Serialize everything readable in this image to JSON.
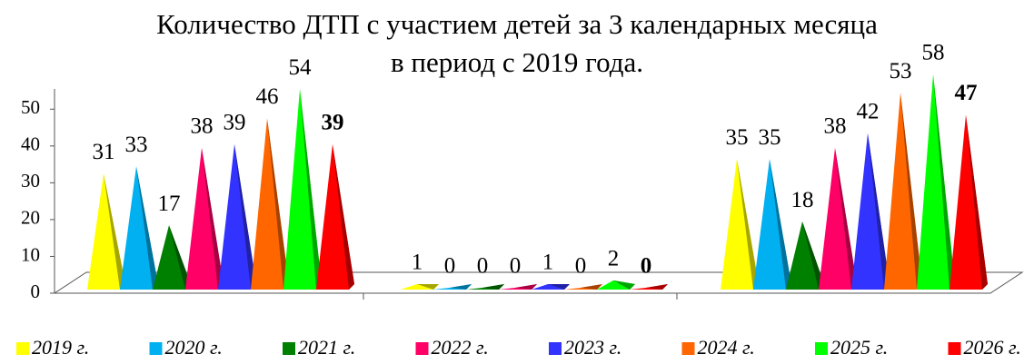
{
  "chart_data": {
    "type": "pyramid",
    "title": [
      "Количество ДТП с участием детей за 3 календарных месяца",
      "в период с 2019 года."
    ],
    "categories": [
      null,
      null,
      null
    ],
    "series": [
      {
        "name": "2019 г.",
        "color": "#ffff00",
        "values": [
          31,
          1,
          35
        ]
      },
      {
        "name": "2020 г.",
        "color": "#00b0f0",
        "values": [
          33,
          0,
          35
        ]
      },
      {
        "name": "2021 г.",
        "color": "#008000",
        "values": [
          17,
          0,
          18
        ]
      },
      {
        "name": "2022 г.",
        "color": "#ff0066",
        "values": [
          38,
          0,
          38
        ]
      },
      {
        "name": "2023 г.",
        "color": "#3333ff",
        "values": [
          39,
          1,
          42
        ]
      },
      {
        "name": "2024 г.",
        "color": "#ff6600",
        "values": [
          46,
          0,
          53
        ]
      },
      {
        "name": "2025 г.",
        "color": "#00ff00",
        "values": [
          54,
          2,
          58
        ]
      },
      {
        "name": "2026 г.",
        "color": "#ff0000",
        "values": [
          39,
          0,
          47
        ]
      }
    ],
    "ylim": [
      0,
      55
    ],
    "yticks": [
      0,
      10,
      20,
      30,
      40,
      50
    ],
    "legend": "bottom"
  }
}
